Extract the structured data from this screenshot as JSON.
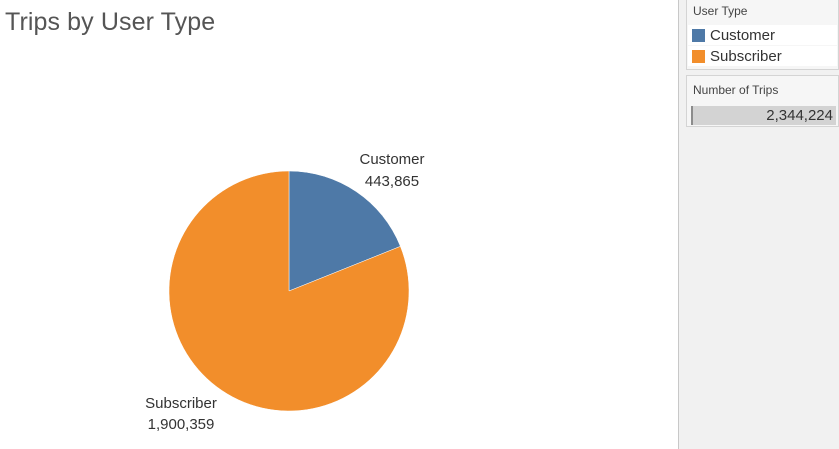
{
  "title": "Trips by User Type",
  "legend": {
    "title": "User Type",
    "items": [
      {
        "label": "Customer",
        "color": "#4e79a7"
      },
      {
        "label": "Subscriber",
        "color": "#f28e2b"
      }
    ]
  },
  "filter_card": {
    "title": "Number of Trips",
    "value": "2,344,224",
    "fill": 1
  },
  "chart_data": {
    "type": "pie",
    "title": "Trips by User Type",
    "categories": [
      "Customer",
      "Subscriber"
    ],
    "values": [
      443865,
      1900359
    ],
    "value_labels": [
      "443,865",
      "1,900,359"
    ],
    "colors": [
      "#4e79a7",
      "#f28e2b"
    ]
  }
}
